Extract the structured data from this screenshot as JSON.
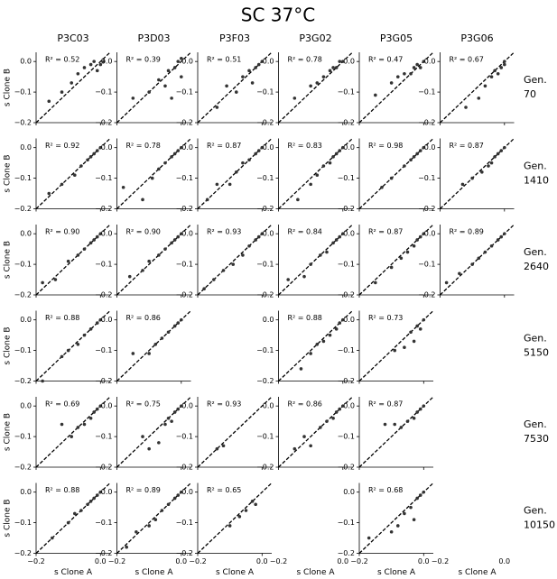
{
  "chart_data": {
    "type": "scatter",
    "title": "SC 37°C",
    "columns": [
      "P3C03",
      "P3D03",
      "P3F03",
      "P3G02",
      "P3G05",
      "P3G06"
    ],
    "row_labels": [
      [
        "Gen.",
        "70"
      ],
      [
        "Gen.",
        "1410"
      ],
      [
        "Gen.",
        "2640"
      ],
      [
        "Gen.",
        "5150"
      ],
      [
        "Gen.",
        "7530"
      ],
      [
        "Gen.",
        "10150"
      ]
    ],
    "xlabel": "s Clone A",
    "ylabel": "s Clone B",
    "color": "#333333",
    "xlim": [
      -0.2,
      0.03
    ],
    "ylim": [
      -0.2,
      0.03
    ],
    "xticks": [
      {
        "value": -0.2,
        "label": "−0.2"
      },
      {
        "value": 0,
        "label": "0.0"
      }
    ],
    "yticks": [
      {
        "value": -0.2,
        "label": "−0.2"
      },
      {
        "value": -0.1,
        "label": "−0.1"
      },
      {
        "value": 0,
        "label": "0.0"
      }
    ],
    "panels": [
      [
        {
          "annotation": "R² = 0.52",
          "x": [
            -0.16,
            -0.12,
            -0.09,
            -0.07,
            -0.05,
            -0.03,
            -0.02,
            -0.01,
            0.0,
            0.01
          ],
          "y": [
            -0.13,
            -0.1,
            -0.07,
            -0.04,
            -0.02,
            -0.01,
            0.0,
            -0.03,
            -0.01,
            0.0
          ]
        },
        {
          "annotation": "R² = 0.39",
          "x": [
            -0.15,
            -0.1,
            -0.07,
            -0.05,
            -0.04,
            -0.02,
            -0.01,
            0.0,
            0.0,
            -0.03
          ],
          "y": [
            -0.12,
            -0.1,
            -0.06,
            -0.08,
            -0.03,
            -0.02,
            0.0,
            -0.05,
            0.01,
            -0.12
          ]
        },
        {
          "annotation": "R² = 0.51",
          "x": [
            -0.14,
            -0.11,
            -0.08,
            -0.06,
            -0.04,
            -0.03,
            -0.02,
            -0.01,
            0.0
          ],
          "y": [
            -0.15,
            -0.08,
            -0.1,
            -0.05,
            -0.03,
            -0.07,
            -0.02,
            -0.01,
            0.0
          ]
        },
        {
          "annotation": "R² = 0.78",
          "x": [
            -0.15,
            -0.1,
            -0.08,
            -0.06,
            -0.04,
            -0.03,
            -0.02,
            -0.01,
            0.0
          ],
          "y": [
            -0.12,
            -0.08,
            -0.07,
            -0.05,
            -0.03,
            -0.02,
            -0.02,
            0.0,
            0.0
          ]
        },
        {
          "annotation": "R² = 0.47",
          "x": [
            -0.15,
            -0.1,
            -0.08,
            -0.06,
            -0.04,
            -0.03,
            -0.02,
            -0.01,
            0.0
          ],
          "y": [
            -0.11,
            -0.07,
            -0.05,
            -0.04,
            -0.04,
            -0.02,
            -0.01,
            -0.02,
            0.0
          ]
        },
        {
          "annotation": "R² = 0.67",
          "x": [
            -0.12,
            -0.08,
            -0.06,
            -0.04,
            -0.03,
            -0.02,
            -0.01,
            0.0,
            0.0
          ],
          "y": [
            -0.15,
            -0.12,
            -0.08,
            -0.05,
            -0.03,
            -0.04,
            -0.02,
            -0.01,
            0.0
          ]
        }
      ],
      [
        {
          "annotation": "R² = 0.92",
          "x": [
            -0.16,
            -0.12,
            -0.08,
            -0.06,
            -0.04,
            -0.03,
            -0.02,
            -0.01,
            0.0
          ],
          "y": [
            -0.15,
            -0.12,
            -0.09,
            -0.06,
            -0.04,
            -0.03,
            -0.02,
            -0.01,
            0.0
          ]
        },
        {
          "annotation": "R² = 0.78",
          "x": [
            -0.18,
            -0.12,
            -0.09,
            -0.07,
            -0.05,
            -0.03,
            -0.02,
            -0.01,
            0.0
          ],
          "y": [
            -0.13,
            -0.17,
            -0.1,
            -0.07,
            -0.05,
            -0.03,
            -0.02,
            -0.01,
            0.0
          ]
        },
        {
          "annotation": "R² = 0.87",
          "x": [
            -0.17,
            -0.14,
            -0.1,
            -0.08,
            -0.06,
            -0.04,
            -0.02,
            -0.01,
            0.0
          ],
          "y": [
            -0.17,
            -0.12,
            -0.12,
            -0.08,
            -0.05,
            -0.04,
            -0.02,
            -0.01,
            0.0
          ]
        },
        {
          "annotation": "R² = 0.83",
          "x": [
            -0.14,
            -0.1,
            -0.08,
            -0.06,
            -0.04,
            -0.03,
            -0.02,
            -0.01,
            0.0
          ],
          "y": [
            -0.17,
            -0.12,
            -0.09,
            -0.06,
            -0.05,
            -0.03,
            -0.02,
            -0.01,
            0.0
          ]
        },
        {
          "annotation": "R² = 0.98",
          "x": [
            -0.13,
            -0.1,
            -0.06,
            -0.04,
            -0.03,
            -0.02,
            -0.01,
            0.0
          ],
          "y": [
            -0.13,
            -0.1,
            -0.06,
            -0.04,
            -0.03,
            -0.02,
            -0.01,
            0.0
          ]
        },
        {
          "annotation": "R² = 0.87",
          "x": [
            -0.13,
            -0.1,
            -0.07,
            -0.05,
            -0.04,
            -0.03,
            -0.02,
            -0.01,
            0.0
          ],
          "y": [
            -0.12,
            -0.1,
            -0.08,
            -0.06,
            -0.05,
            -0.03,
            -0.02,
            -0.01,
            0.0
          ]
        }
      ],
      [
        {
          "annotation": "R² = 0.90",
          "x": [
            -0.18,
            -0.14,
            -0.1,
            -0.07,
            -0.05,
            -0.03,
            -0.02,
            -0.01,
            0.0
          ],
          "y": [
            -0.16,
            -0.15,
            -0.09,
            -0.07,
            -0.05,
            -0.03,
            -0.02,
            -0.01,
            0.0
          ]
        },
        {
          "annotation": "R² = 0.90",
          "x": [
            -0.16,
            -0.12,
            -0.1,
            -0.07,
            -0.05,
            -0.03,
            -0.02,
            -0.01,
            0.0
          ],
          "y": [
            -0.14,
            -0.12,
            -0.09,
            -0.07,
            -0.05,
            -0.03,
            -0.02,
            -0.01,
            0.0
          ]
        },
        {
          "annotation": "R² = 0.93",
          "x": [
            -0.18,
            -0.15,
            -0.12,
            -0.09,
            -0.06,
            -0.04,
            -0.02,
            -0.01,
            0.0
          ],
          "y": [
            -0.18,
            -0.15,
            -0.12,
            -0.1,
            -0.07,
            -0.04,
            -0.02,
            -0.01,
            0.0
          ]
        },
        {
          "annotation": "R² = 0.84",
          "x": [
            -0.17,
            -0.12,
            -0.1,
            -0.07,
            -0.05,
            -0.03,
            -0.02,
            -0.01,
            0.0
          ],
          "y": [
            -0.15,
            -0.14,
            -0.1,
            -0.07,
            -0.06,
            -0.03,
            -0.02,
            -0.01,
            0.0
          ]
        },
        {
          "annotation": "R² = 0.87",
          "x": [
            -0.15,
            -0.1,
            -0.07,
            -0.05,
            -0.03,
            -0.02,
            -0.01,
            0.0
          ],
          "y": [
            -0.16,
            -0.11,
            -0.08,
            -0.06,
            -0.04,
            -0.02,
            -0.01,
            0.0
          ]
        },
        {
          "annotation": "R² = 0.89",
          "x": [
            -0.18,
            -0.14,
            -0.1,
            -0.08,
            -0.06,
            -0.04,
            -0.02,
            -0.01,
            0.0
          ],
          "y": [
            -0.16,
            -0.13,
            -0.1,
            -0.08,
            -0.06,
            -0.04,
            -0.02,
            -0.01,
            0.0
          ]
        }
      ],
      [
        {
          "annotation": "R² = 0.88",
          "x": [
            -0.18,
            -0.12,
            -0.1,
            -0.07,
            -0.05,
            -0.03,
            -0.01,
            0.0
          ],
          "y": [
            -0.2,
            -0.12,
            -0.1,
            -0.08,
            -0.05,
            -0.03,
            -0.01,
            0.0
          ]
        },
        {
          "annotation": "R² = 0.86",
          "x": [
            -0.15,
            -0.1,
            -0.08,
            -0.06,
            -0.04,
            -0.02,
            -0.01,
            0.0
          ],
          "y": [
            -0.11,
            -0.11,
            -0.08,
            -0.06,
            -0.04,
            -0.02,
            -0.01,
            0.0
          ]
        },
        null,
        {
          "annotation": "R² = 0.88",
          "x": [
            -0.13,
            -0.1,
            -0.08,
            -0.06,
            -0.04,
            -0.02,
            -0.01,
            0.0
          ],
          "y": [
            -0.16,
            -0.11,
            -0.08,
            -0.07,
            -0.05,
            -0.03,
            -0.01,
            0.0
          ]
        },
        {
          "annotation": "R² = 0.73",
          "x": [
            -0.09,
            -0.06,
            -0.04,
            -0.03,
            -0.02,
            -0.01,
            0.0
          ],
          "y": [
            -0.1,
            -0.09,
            -0.04,
            -0.07,
            -0.02,
            -0.03,
            0.0
          ]
        },
        null
      ],
      [
        {
          "annotation": "R² = 0.69",
          "x": [
            -0.12,
            -0.09,
            -0.07,
            -0.05,
            -0.03,
            -0.02,
            -0.01,
            0.0
          ],
          "y": [
            -0.06,
            -0.1,
            -0.07,
            -0.06,
            -0.04,
            -0.02,
            -0.01,
            0.0
          ]
        },
        {
          "annotation": "R² = 0.75",
          "x": [
            -0.12,
            -0.1,
            -0.07,
            -0.05,
            -0.04,
            -0.03,
            -0.02,
            -0.01,
            0.0
          ],
          "y": [
            -0.1,
            -0.14,
            -0.12,
            -0.06,
            -0.04,
            -0.05,
            -0.02,
            -0.01,
            0.0
          ]
        },
        {
          "annotation": "R² = 0.93",
          "x": [
            -0.14,
            -0.12
          ],
          "y": [
            -0.14,
            -0.13
          ]
        },
        {
          "annotation": "R² = 0.86",
          "x": [
            -0.15,
            -0.12,
            -0.1,
            -0.07,
            -0.05,
            -0.03,
            -0.02,
            -0.01,
            0.0
          ],
          "y": [
            -0.14,
            -0.1,
            -0.13,
            -0.07,
            -0.05,
            -0.04,
            -0.02,
            -0.01,
            0.0
          ]
        },
        {
          "annotation": "R² = 0.87",
          "x": [
            -0.12,
            -0.09,
            -0.07,
            -0.05,
            -0.03,
            -0.02,
            -0.01,
            0.0
          ],
          "y": [
            -0.06,
            -0.06,
            -0.07,
            -0.05,
            -0.04,
            -0.02,
            -0.01,
            0.0
          ]
        },
        null
      ],
      [
        {
          "annotation": "R² = 0.88",
          "x": [
            -0.15,
            -0.1,
            -0.08,
            -0.06,
            -0.04,
            -0.03,
            -0.02,
            -0.01,
            0.0
          ],
          "y": [
            -0.15,
            -0.1,
            -0.07,
            -0.06,
            -0.04,
            -0.03,
            -0.02,
            -0.01,
            0.0
          ]
        },
        {
          "annotation": "R² = 0.89",
          "x": [
            -0.17,
            -0.14,
            -0.1,
            -0.08,
            -0.06,
            -0.04,
            -0.02,
            -0.01,
            0.0
          ],
          "y": [
            -0.18,
            -0.13,
            -0.11,
            -0.09,
            -0.06,
            -0.04,
            -0.02,
            -0.01,
            0.0
          ]
        },
        {
          "annotation": "R² = 0.65",
          "x": [
            -0.1,
            -0.07,
            -0.05,
            -0.03,
            -0.02
          ],
          "y": [
            -0.11,
            -0.08,
            -0.06,
            -0.03,
            -0.04
          ]
        },
        null,
        {
          "annotation": "R² = 0.68",
          "x": [
            -0.17,
            -0.1,
            -0.08,
            -0.06,
            -0.04,
            -0.03,
            -0.02,
            -0.01,
            0.0
          ],
          "y": [
            -0.15,
            -0.13,
            -0.11,
            -0.07,
            -0.05,
            -0.09,
            -0.02,
            -0.01,
            0.0
          ]
        },
        null
      ]
    ]
  }
}
